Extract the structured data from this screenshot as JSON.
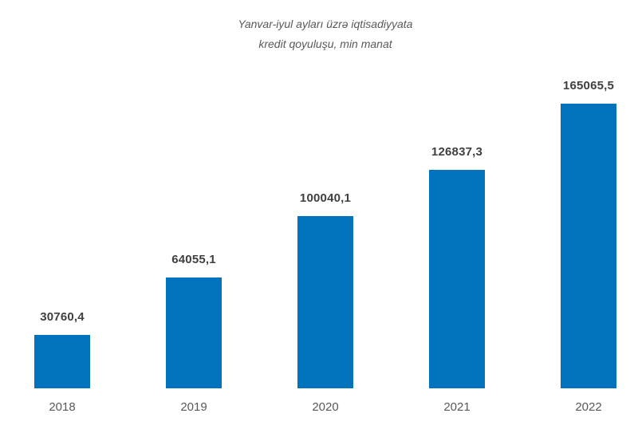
{
  "page": {
    "background": "#ffffff"
  },
  "chart_data": {
    "type": "bar",
    "title": "Yanvar-iyul ayları üzrə iqtisadiyyata kredit qoyuluşu, min manat",
    "title_lines": [
      "Yanvar-iyul ayları üzrə iqtisadiyyata",
      "kredit qoyuluşu, min manat"
    ],
    "categories": [
      "2018",
      "2019",
      "2020",
      "2021",
      "2022"
    ],
    "values": [
      30760.4,
      64055.1,
      100040.1,
      126837.3,
      165065.5
    ],
    "value_labels": [
      "30760,4",
      "64055,1",
      "100040,1",
      "126837,3",
      "165065,5"
    ],
    "xlabel": "",
    "ylabel": "",
    "ylim": [
      0,
      165065.5
    ],
    "grid": false,
    "legend": "none",
    "axis_line": false,
    "bar_color": "#0173BC",
    "value_label_color": "#404040",
    "axis_label_color": "#595959",
    "title_color": "#595959"
  }
}
